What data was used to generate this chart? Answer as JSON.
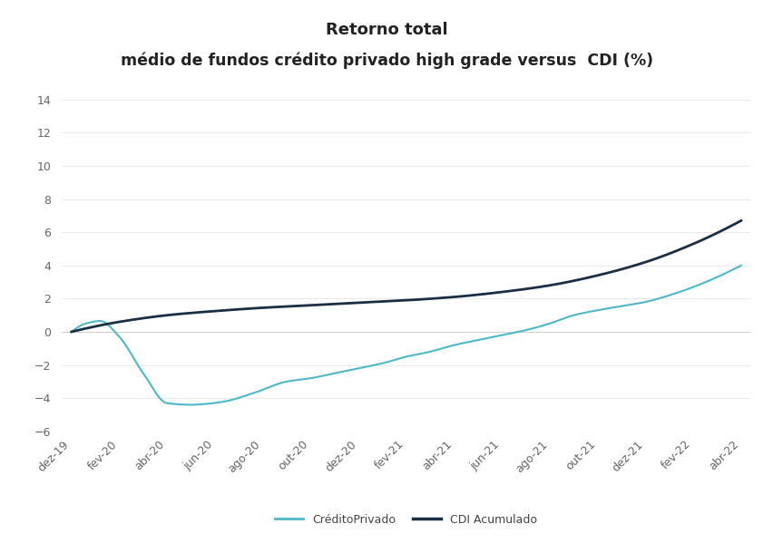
{
  "title_line1": "Retorno total",
  "title_line2": "médio de fundos crédito privado high grade versus  CDI (%)",
  "title_fontsize": 13,
  "ylim": [
    -6,
    15
  ],
  "yticks": [
    -6,
    -4,
    -2,
    0,
    2,
    4,
    6,
    8,
    10,
    12,
    14
  ],
  "xtick_labels": [
    "dez-19",
    "fev-20",
    "abr-20",
    "jun-20",
    "ago-20",
    "out-20",
    "dez-20",
    "fev-21",
    "abr-21",
    "jun-21",
    "ago-21",
    "out-21",
    "dez-21",
    "fev-22",
    "abr-22"
  ],
  "credito_privado_color": "#4db8c8",
  "cdi_color": "#1a2e44",
  "legend_labels": [
    "CréditoPrivado",
    "CDI Acumulado"
  ],
  "background_color": "#ffffff",
  "n_points": 500,
  "cp_keypoints_x": [
    0,
    0.3,
    0.6,
    1.0,
    1.5,
    2.0,
    2.5,
    2.8,
    3.2,
    3.8,
    4.5,
    5.0,
    5.5,
    6.0,
    6.5,
    7.0,
    7.5,
    8.0,
    8.5,
    9.0,
    9.5,
    10.0,
    10.5,
    11.0,
    11.5,
    12.0,
    12.5,
    13.0,
    13.5,
    14.0
  ],
  "cp_keypoints_y": [
    0.0,
    0.5,
    0.65,
    -0.3,
    -2.5,
    -4.3,
    -4.4,
    -4.35,
    -4.2,
    -3.7,
    -3.0,
    -2.8,
    -2.5,
    -2.2,
    -1.9,
    -1.5,
    -1.2,
    -0.8,
    -0.5,
    -0.2,
    0.1,
    0.5,
    1.0,
    1.3,
    1.55,
    1.8,
    2.2,
    2.7,
    3.3,
    4.0
  ],
  "cdi_keypoints_x": [
    0,
    1.0,
    2.0,
    3.0,
    4.0,
    5.0,
    6.0,
    7.0,
    8.0,
    9.0,
    10.0,
    11.0,
    12.0,
    13.0,
    14.0
  ],
  "cdi_keypoints_y": [
    0.0,
    0.6,
    1.0,
    1.25,
    1.45,
    1.6,
    1.75,
    1.9,
    2.1,
    2.4,
    2.8,
    3.4,
    4.2,
    5.3,
    6.7
  ]
}
